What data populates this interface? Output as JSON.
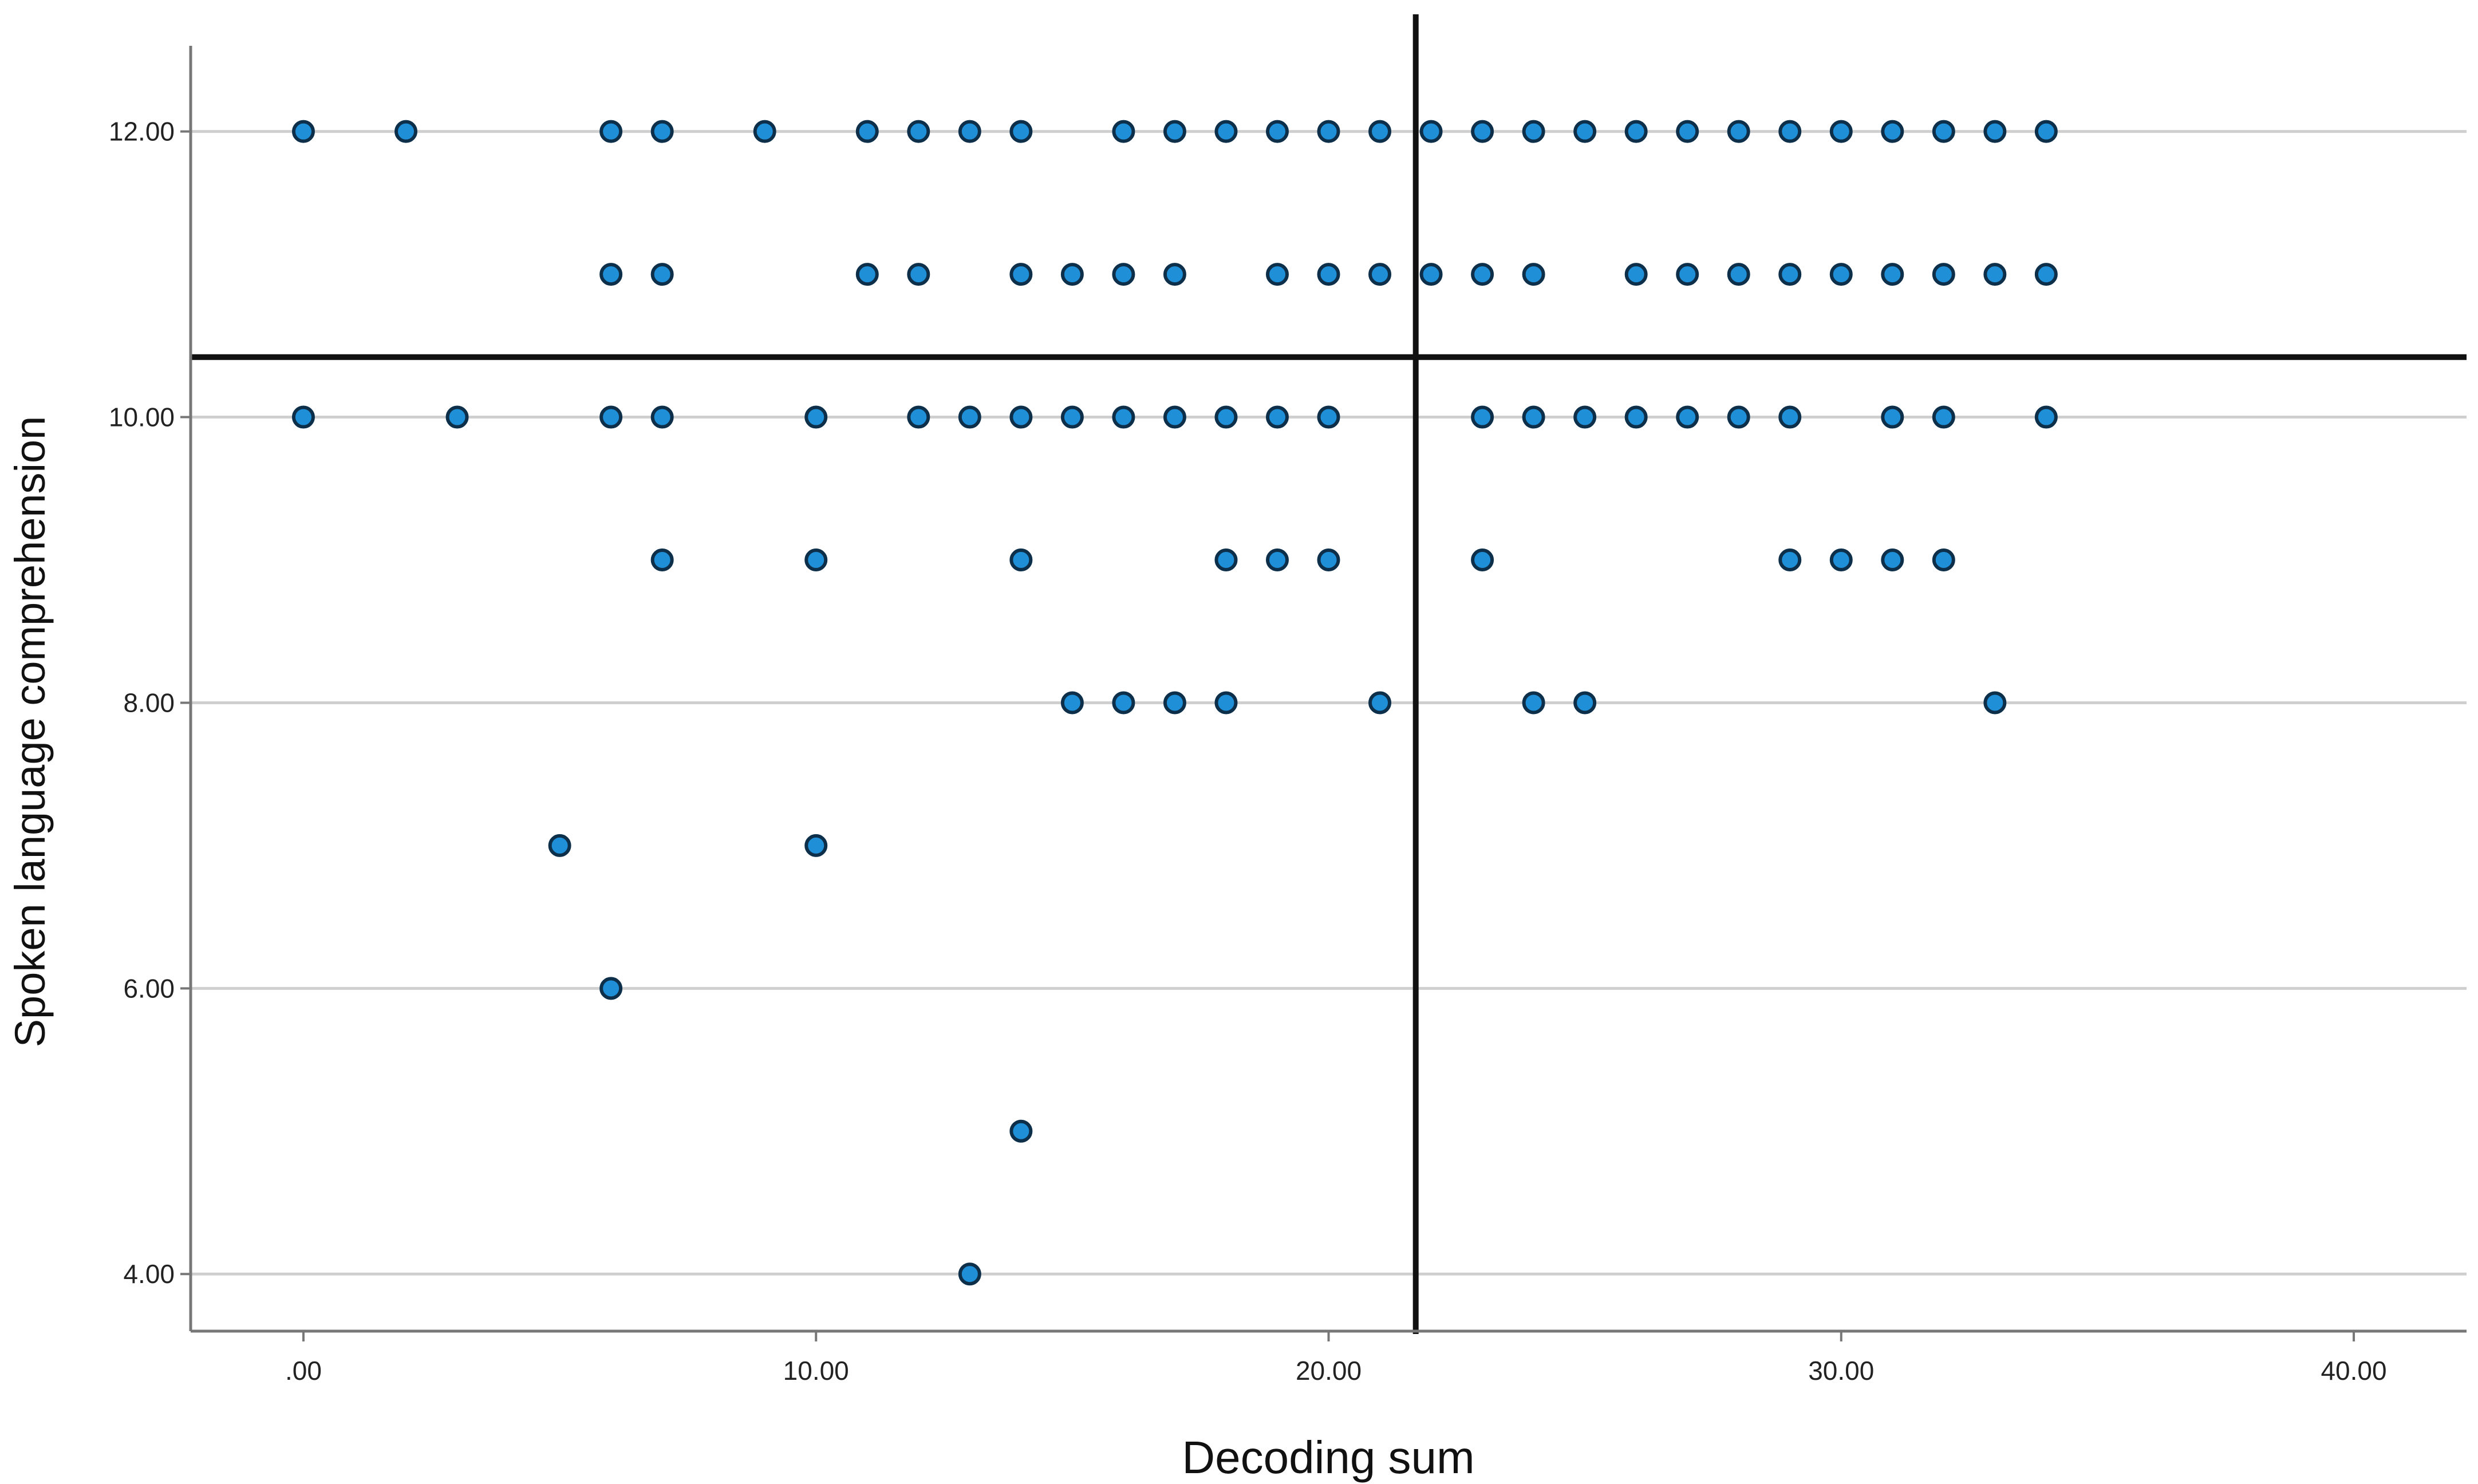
{
  "chart_data": {
    "type": "scatter",
    "xlabel": "Decoding sum",
    "ylabel": "Spoken language comprehension",
    "xlim": [
      -2.2,
      42.2
    ],
    "ylim": [
      3.6,
      12.6
    ],
    "x_ticks": [
      ".00",
      "10.00",
      "20.00",
      "30.00",
      "40.00"
    ],
    "x_tick_values": [
      0,
      10,
      20,
      30,
      40
    ],
    "y_ticks": [
      "4.00",
      "6.00",
      "8.00",
      "10.00",
      "12.00"
    ],
    "y_tick_values": [
      4,
      6,
      8,
      10,
      12
    ],
    "grid": "horizontal",
    "reference_lines": {
      "x": 21.7,
      "y": 10.42
    },
    "marker_color": "#1f8fd8",
    "marker_edge": "#0d2f4a",
    "points": [
      {
        "x": 0,
        "y": 12
      },
      {
        "x": 2,
        "y": 12
      },
      {
        "x": 6,
        "y": 12
      },
      {
        "x": 7,
        "y": 12
      },
      {
        "x": 9,
        "y": 12
      },
      {
        "x": 11,
        "y": 12
      },
      {
        "x": 12,
        "y": 12
      },
      {
        "x": 13,
        "y": 12
      },
      {
        "x": 14,
        "y": 12
      },
      {
        "x": 16,
        "y": 12
      },
      {
        "x": 17,
        "y": 12
      },
      {
        "x": 18,
        "y": 12
      },
      {
        "x": 19,
        "y": 12
      },
      {
        "x": 20,
        "y": 12
      },
      {
        "x": 21,
        "y": 12
      },
      {
        "x": 22,
        "y": 12
      },
      {
        "x": 23,
        "y": 12
      },
      {
        "x": 24,
        "y": 12
      },
      {
        "x": 25,
        "y": 12
      },
      {
        "x": 26,
        "y": 12
      },
      {
        "x": 27,
        "y": 12
      },
      {
        "x": 28,
        "y": 12
      },
      {
        "x": 29,
        "y": 12
      },
      {
        "x": 30,
        "y": 12
      },
      {
        "x": 31,
        "y": 12
      },
      {
        "x": 32,
        "y": 12
      },
      {
        "x": 33,
        "y": 12
      },
      {
        "x": 34,
        "y": 12
      },
      {
        "x": 6,
        "y": 11
      },
      {
        "x": 7,
        "y": 11
      },
      {
        "x": 11,
        "y": 11
      },
      {
        "x": 12,
        "y": 11
      },
      {
        "x": 14,
        "y": 11
      },
      {
        "x": 15,
        "y": 11
      },
      {
        "x": 16,
        "y": 11
      },
      {
        "x": 17,
        "y": 11
      },
      {
        "x": 19,
        "y": 11
      },
      {
        "x": 20,
        "y": 11
      },
      {
        "x": 21,
        "y": 11
      },
      {
        "x": 22,
        "y": 11
      },
      {
        "x": 23,
        "y": 11
      },
      {
        "x": 24,
        "y": 11
      },
      {
        "x": 26,
        "y": 11
      },
      {
        "x": 27,
        "y": 11
      },
      {
        "x": 28,
        "y": 11
      },
      {
        "x": 29,
        "y": 11
      },
      {
        "x": 30,
        "y": 11
      },
      {
        "x": 31,
        "y": 11
      },
      {
        "x": 32,
        "y": 11
      },
      {
        "x": 33,
        "y": 11
      },
      {
        "x": 34,
        "y": 11
      },
      {
        "x": 0,
        "y": 10
      },
      {
        "x": 3,
        "y": 10
      },
      {
        "x": 6,
        "y": 10
      },
      {
        "x": 7,
        "y": 10
      },
      {
        "x": 10,
        "y": 10
      },
      {
        "x": 12,
        "y": 10
      },
      {
        "x": 13,
        "y": 10
      },
      {
        "x": 14,
        "y": 10
      },
      {
        "x": 15,
        "y": 10
      },
      {
        "x": 16,
        "y": 10
      },
      {
        "x": 17,
        "y": 10
      },
      {
        "x": 18,
        "y": 10
      },
      {
        "x": 19,
        "y": 10
      },
      {
        "x": 20,
        "y": 10
      },
      {
        "x": 23,
        "y": 10
      },
      {
        "x": 24,
        "y": 10
      },
      {
        "x": 25,
        "y": 10
      },
      {
        "x": 26,
        "y": 10
      },
      {
        "x": 27,
        "y": 10
      },
      {
        "x": 28,
        "y": 10
      },
      {
        "x": 29,
        "y": 10
      },
      {
        "x": 31,
        "y": 10
      },
      {
        "x": 32,
        "y": 10
      },
      {
        "x": 34,
        "y": 10
      },
      {
        "x": 7,
        "y": 9
      },
      {
        "x": 10,
        "y": 9
      },
      {
        "x": 14,
        "y": 9
      },
      {
        "x": 18,
        "y": 9
      },
      {
        "x": 19,
        "y": 9
      },
      {
        "x": 20,
        "y": 9
      },
      {
        "x": 23,
        "y": 9
      },
      {
        "x": 29,
        "y": 9
      },
      {
        "x": 30,
        "y": 9
      },
      {
        "x": 31,
        "y": 9
      },
      {
        "x": 32,
        "y": 9
      },
      {
        "x": 15,
        "y": 8
      },
      {
        "x": 16,
        "y": 8
      },
      {
        "x": 17,
        "y": 8
      },
      {
        "x": 18,
        "y": 8
      },
      {
        "x": 21,
        "y": 8
      },
      {
        "x": 24,
        "y": 8
      },
      {
        "x": 25,
        "y": 8
      },
      {
        "x": 33,
        "y": 8
      },
      {
        "x": 5,
        "y": 7
      },
      {
        "x": 10,
        "y": 7
      },
      {
        "x": 6,
        "y": 6
      },
      {
        "x": 14,
        "y": 5
      },
      {
        "x": 13,
        "y": 4
      }
    ]
  }
}
